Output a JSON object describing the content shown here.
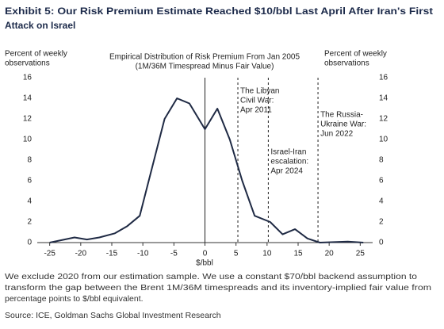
{
  "chart_data": {
    "type": "line",
    "title": [
      "Exhibit 5: Our Risk Premium Estimate Reached $10/bbl Last April After Iran's First",
      "Attack on Israel"
    ],
    "subtitle": [
      "Empirical Distribution of Risk Premium From Jan 2005",
      "(1M/36M Timespread Minus Fair Value)"
    ],
    "y_label": [
      "Percent of weekly",
      "observations"
    ],
    "y2_label": [
      "Percent of weekly",
      "observations"
    ],
    "x_label": "$/bbl",
    "x": [
      -25,
      -21,
      -19,
      -17,
      -14.5,
      -12.5,
      -10.5,
      -6.5,
      -4.5,
      -2.5,
      0,
      2,
      4,
      6,
      8,
      10.5,
      12.5,
      14.5,
      16.5,
      18.5,
      23,
      25.5
    ],
    "series": [
      {
        "color": "#1f2a44",
        "values": [
          0,
          0.5,
          0.3,
          0.5,
          0.9,
          1.6,
          2.6,
          12,
          14,
          13.5,
          11,
          13,
          10,
          6,
          2.6,
          2,
          0.8,
          1.3,
          0.4,
          0,
          0.1,
          0
        ]
      }
    ],
    "xlim": [
      -27,
      27
    ],
    "xticks": [
      -25,
      -20,
      -15,
      -10,
      -5,
      0,
      5,
      10,
      15,
      20,
      25
    ],
    "ylim": [
      0,
      16
    ],
    "yticks": [
      0,
      2,
      4,
      6,
      8,
      10,
      12,
      14,
      16
    ],
    "y2lim": [
      0,
      16
    ],
    "y2ticks": [
      0,
      2,
      4,
      6,
      8,
      10,
      12,
      14,
      16
    ],
    "zero_line": 0,
    "annotations": [
      {
        "lines": [
          "The Libyan",
          "Civil War:",
          "Apr 2011"
        ],
        "x": 5.3
      },
      {
        "lines": [
          "Israel-Iran",
          "escalation:",
          "Apr 2024"
        ],
        "x": 10.2
      },
      {
        "lines": [
          "The Russia-",
          "Ukraine War:",
          "Jun 2022"
        ],
        "x": 18.2
      }
    ],
    "footnote": [
      "We exclude 2020 from our estimation sample. We use a constant $70/bbl backend assumption to",
      "transform the gap between the Brent 1M/36M timespreads and its inventory-implied fair value from",
      "percentage points to $/bbl equivalent."
    ],
    "source": "Source: ICE, Goldman Sachs Global Investment Research"
  }
}
